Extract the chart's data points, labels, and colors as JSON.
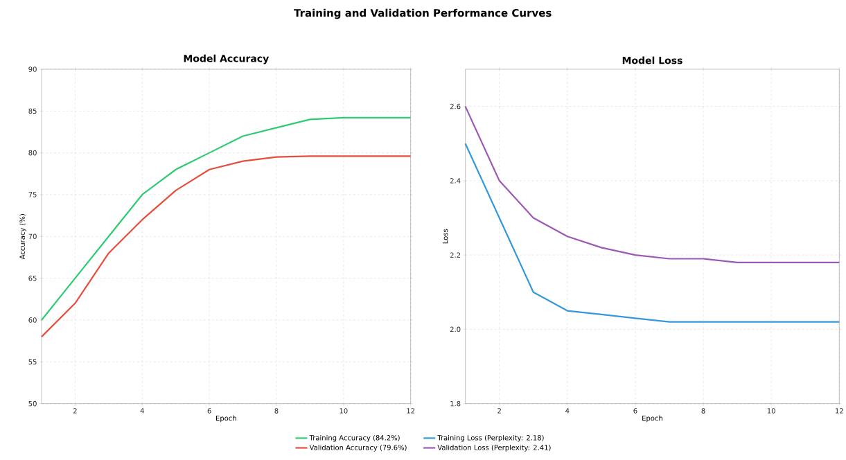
{
  "chart_data": [
    {
      "type": "line",
      "title": "Model Accuracy",
      "xlabel": "Epoch",
      "ylabel": "Accuracy (%)",
      "annotations": [
        "Training and Validation Performance Curves"
      ],
      "x": [
        1,
        2,
        3,
        4,
        5,
        6,
        7,
        8,
        9,
        10,
        11,
        12
      ],
      "series": [
        {
          "name": "Training Accuracy (84.2%)",
          "color": "#2ecc71",
          "values": [
            60,
            65,
            70,
            75,
            78,
            80,
            82,
            83,
            84,
            84.2,
            84.2,
            84.2
          ]
        },
        {
          "name": "Validation Accuracy (79.6%)",
          "color": "#e74c3c",
          "values": [
            58,
            62,
            68,
            72,
            75.5,
            78,
            79,
            79.5,
            79.6,
            79.6,
            79.6,
            79.6
          ]
        }
      ],
      "xlim": [
        1,
        12
      ],
      "xticks": [
        2,
        4,
        6,
        8,
        10,
        12
      ],
      "ylim": [
        50,
        90
      ],
      "yticks": [
        50,
        55,
        60,
        65,
        70,
        75,
        80,
        85,
        90
      ],
      "grid": true,
      "legend": "bottom",
      "marker": "none",
      "line_style": "solid"
    },
    {
      "type": "line",
      "title": "Model Loss",
      "xlabel": "Epoch",
      "ylabel": "Loss",
      "x": [
        1,
        2,
        3,
        4,
        5,
        6,
        7,
        8,
        9,
        10,
        11,
        12
      ],
      "series": [
        {
          "name": "Training Loss (Perplexity: 2.18)",
          "color": "#3498db",
          "values": [
            2.5,
            2.3,
            2.1,
            2.05,
            2.04,
            2.03,
            2.02,
            2.02,
            2.02,
            2.02,
            2.02,
            2.02
          ]
        },
        {
          "name": "Validation Loss (Perplexity: 2.41)",
          "color": "#9b59b6",
          "values": [
            2.6,
            2.4,
            2.3,
            2.25,
            2.22,
            2.2,
            2.19,
            2.19,
            2.18,
            2.18,
            2.18,
            2.18
          ]
        }
      ],
      "xlim": [
        1,
        12
      ],
      "xticks": [
        2,
        4,
        6,
        8,
        10,
        12
      ],
      "ylim": [
        1.8,
        2.7
      ],
      "yticks": [
        1.8,
        {
          "value": 2,
          "label": "2.0"
        },
        2.2,
        2.4,
        2.6
      ],
      "grid": true,
      "legend": "bottom",
      "marker": "none",
      "line_style": "solid"
    }
  ]
}
